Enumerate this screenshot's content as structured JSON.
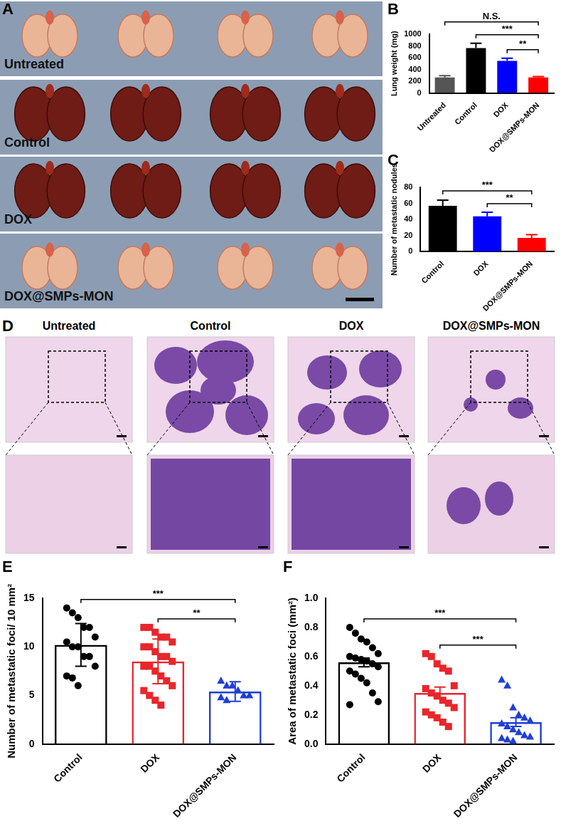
{
  "images": [
    {
      "panel": "A",
      "labels": [
        "Untreated",
        "Control",
        "DOX",
        "DOX@SMPs-MON"
      ]
    },
    {
      "panel": "D",
      "labels": [
        "Untreated",
        "Control",
        "DOX",
        "DOX@SMPs-MON"
      ]
    }
  ],
  "chart_data": [
    {
      "panel": "B",
      "type": "bar",
      "categories": [
        "Untreated",
        "Control",
        "DOX",
        "DOX@SMPs-MON"
      ],
      "values": [
        265,
        765,
        545,
        265
      ],
      "errors": [
        30,
        80,
        45,
        15
      ],
      "colors": [
        "#555555",
        "#000000",
        "#0000ff",
        "#ff0000"
      ],
      "y_label": "Lung weight (mg)",
      "ylim": [
        0,
        1000
      ],
      "yticks": [
        0,
        200,
        400,
        600,
        800,
        1000
      ],
      "grid": false,
      "annotations": [
        {
          "between": [
            "Untreated",
            "DOX@SMPs-MON"
          ],
          "text": "N.S."
        },
        {
          "between": [
            "Control",
            "DOX@SMPs-MON"
          ],
          "text": "***"
        },
        {
          "between": [
            "DOX",
            "DOX@SMPs-MON"
          ],
          "text": "**"
        }
      ]
    },
    {
      "panel": "C",
      "type": "bar",
      "categories": [
        "Control",
        "DOX",
        "DOX@SMPs-MON"
      ],
      "values": [
        57,
        44,
        17
      ],
      "errors": [
        7,
        5,
        4
      ],
      "colors": [
        "#000000",
        "#0000ff",
        "#ff0000"
      ],
      "y_label": "Number of metastatic nodules",
      "ylim": [
        0,
        80
      ],
      "yticks": [
        0,
        20,
        40,
        60,
        80
      ],
      "grid": false,
      "annotations": [
        {
          "between": [
            "Control",
            "DOX@SMPs-MON"
          ],
          "text": "***"
        },
        {
          "between": [
            "DOX",
            "DOX@SMPs-MON"
          ],
          "text": "**"
        }
      ]
    },
    {
      "panel": "E",
      "type": "bar",
      "categories": [
        "Control",
        "DOX",
        "DOX@SMPs-MON"
      ],
      "values": [
        10.2,
        8.5,
        5.4
      ],
      "errors": [
        2.2,
        2.3,
        1.0
      ],
      "points": [
        [
          14,
          13.5,
          13,
          12,
          12,
          11,
          10.5,
          10,
          10,
          9,
          9,
          8,
          7,
          6.8,
          6
        ],
        [
          12,
          12,
          11.5,
          11,
          11,
          10.5,
          10,
          10,
          9.5,
          9,
          9,
          8.5,
          8,
          8,
          7.5,
          7,
          6.5,
          6,
          5.5,
          5,
          4.5,
          4
        ],
        [
          6.5,
          6,
          6,
          5.5,
          5,
          5,
          4.8,
          4.5
        ]
      ],
      "colors": [
        "#000000",
        "#e8262b",
        "#1f3fd6"
      ],
      "y_label": "Number of metastatic foci/ 10 mm²",
      "ylim": [
        0,
        15
      ],
      "yticks": [
        0,
        5,
        10,
        15
      ],
      "grid": false,
      "annotations": [
        {
          "between": [
            "Control",
            "DOX@SMPs-MON"
          ],
          "text": "***"
        },
        {
          "between": [
            "DOX",
            "DOX@SMPs-MON"
          ],
          "text": "**"
        }
      ]
    },
    {
      "panel": "F",
      "type": "bar",
      "categories": [
        "Control",
        "DOX",
        "DOX@SMPs-MON"
      ],
      "values": [
        0.56,
        0.35,
        0.15
      ],
      "errors": [
        0.03,
        0.04,
        0.03
      ],
      "points": [
        [
          0.8,
          0.76,
          0.72,
          0.7,
          0.66,
          0.62,
          0.6,
          0.59,
          0.58,
          0.57,
          0.55,
          0.53,
          0.5,
          0.48,
          0.45,
          0.42,
          0.35,
          0.29,
          0.27
        ],
        [
          0.62,
          0.6,
          0.55,
          0.52,
          0.5,
          0.4,
          0.38,
          0.35,
          0.33,
          0.3,
          0.28,
          0.25,
          0.22,
          0.2,
          0.18,
          0.15,
          0.12
        ],
        [
          0.44,
          0.4,
          0.25,
          0.2,
          0.18,
          0.16,
          0.14,
          0.12,
          0.1,
          0.08,
          0.06,
          0.05,
          0.04,
          0.03,
          0.02
        ]
      ],
      "colors": [
        "#000000",
        "#e8262b",
        "#1f3fd6"
      ],
      "y_label": "Area of metastatic foci (mm²)",
      "ylim": [
        0,
        1
      ],
      "yticks": [
        {
          "value": 0,
          "label": "0.0"
        },
        0.2,
        0.4,
        0.6,
        0.8,
        {
          "value": 1,
          "label": "1.0"
        }
      ],
      "grid": false,
      "annotations": [
        {
          "between": [
            "Control",
            "DOX@SMPs-MON"
          ],
          "text": "***"
        },
        {
          "between": [
            "DOX",
            "DOX@SMPs-MON"
          ],
          "text": "***"
        }
      ]
    }
  ]
}
